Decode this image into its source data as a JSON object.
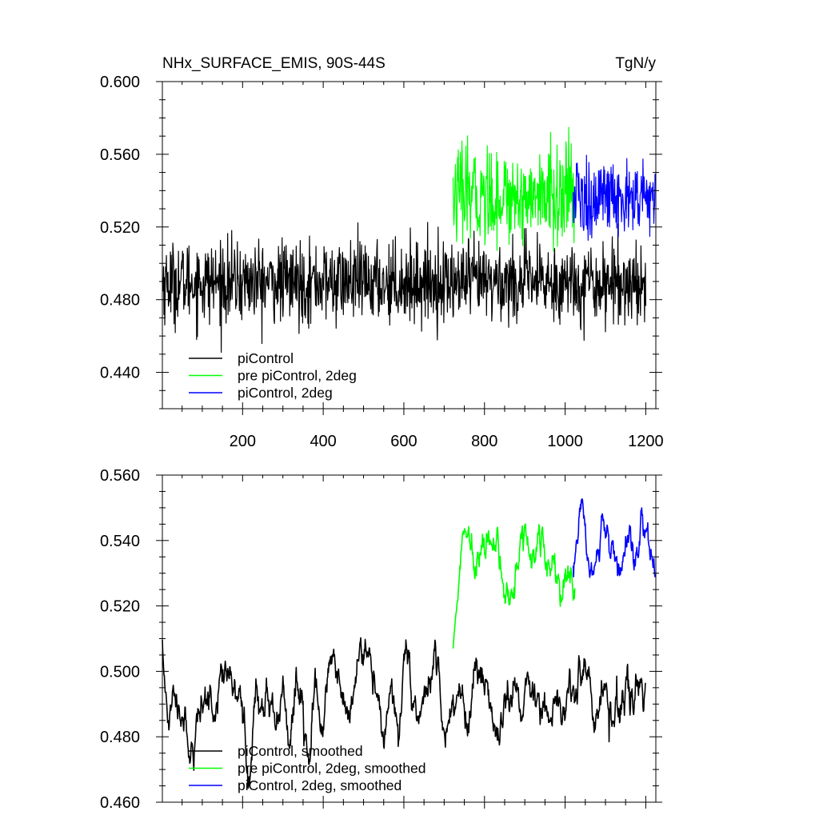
{
  "chart_data": [
    {
      "type": "line",
      "title": "NHx_SURFACE_EMIS, 90S-44S",
      "units": "TgN/y",
      "xlim": [
        1,
        1225
      ],
      "ylim": [
        0.42,
        0.6
      ],
      "x_ticks": [
        200,
        400,
        600,
        800,
        1000,
        1200
      ],
      "x_tick_labels": [
        "200",
        "400",
        "600",
        "800",
        "1000",
        "1200"
      ],
      "y_ticks": [
        0.44,
        0.48,
        0.52,
        0.56,
        0.6
      ],
      "y_tick_labels": [
        "0.440",
        "0.480",
        "0.520",
        "0.560",
        "0.600"
      ],
      "grid": false,
      "legend_position": "bottom-left",
      "series": [
        {
          "name": "piControl",
          "color": "#000000",
          "x_start": 1,
          "x_end": 1200,
          "mean": 0.4895,
          "amplitude": 0.011,
          "noise": "annual"
        },
        {
          "name": "pre piControl, 2deg",
          "color": "#00ff00",
          "x_start": 722,
          "x_end": 1024,
          "mean": 0.537,
          "amplitude": 0.013,
          "noise": "annual"
        },
        {
          "name": "piControl, 2deg",
          "color": "#0000ff",
          "x_start": 1020,
          "x_end": 1223,
          "mean": 0.535,
          "amplitude": 0.011,
          "noise": "annual"
        }
      ]
    },
    {
      "type": "line",
      "xlim": [
        1,
        1225
      ],
      "ylim": [
        0.46,
        0.56
      ],
      "x_ticks": [
        200,
        400,
        600,
        800,
        1000,
        1200
      ],
      "y_ticks": [
        0.46,
        0.48,
        0.5,
        0.52,
        0.54,
        0.56
      ],
      "y_tick_labels": [
        "0.460",
        "0.480",
        "0.500",
        "0.520",
        "0.540",
        "0.560"
      ],
      "grid": false,
      "legend_position": "bottom-left",
      "series": [
        {
          "name": "piControl, smoothed",
          "color": "#000000",
          "x_start": 1,
          "x_end": 1200,
          "mean": 0.4905,
          "amplitude": 0.0075,
          "noise": "smoothed"
        },
        {
          "name": "pre piControl, 2deg, smoothed",
          "color": "#00ff00",
          "x_start": 722,
          "x_end": 1024,
          "mean": 0.535,
          "amplitude": 0.0065,
          "noise": "smoothed",
          "start_value": 0.507
        },
        {
          "name": "piControl, 2deg, smoothed",
          "color": "#0000ff",
          "x_start": 1020,
          "x_end": 1223,
          "mean": 0.537,
          "amplitude": 0.006,
          "noise": "smoothed"
        }
      ]
    }
  ]
}
